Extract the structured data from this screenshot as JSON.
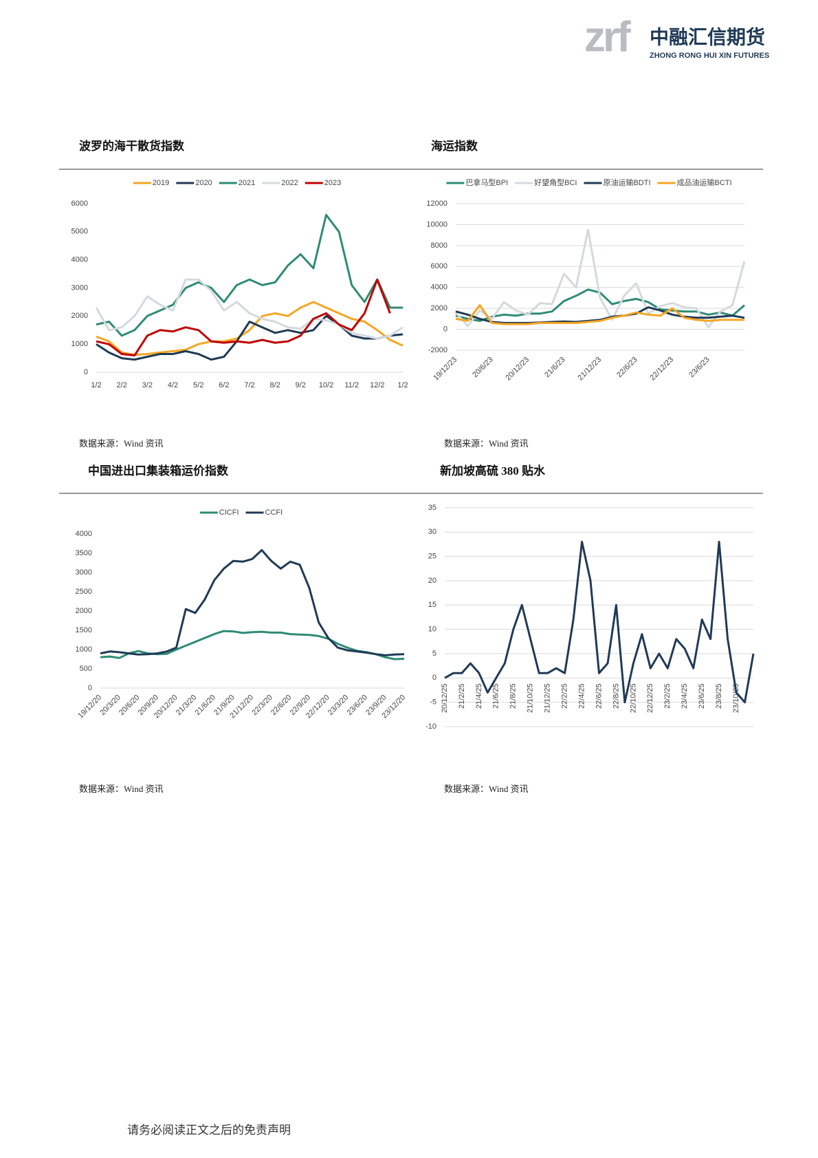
{
  "header": {
    "logo_mark": "zrf",
    "company": "中融汇信期货",
    "company_en": "ZHONG RONG HUI XIN FUTURES"
  },
  "chart_data": [
    {
      "type": "line",
      "title": "波罗的海干散货指数",
      "source": "数据来源：Wind 资讯",
      "legend": "top",
      "grid": false,
      "categories": [
        "1/2",
        null,
        "2/2",
        null,
        "3/2",
        null,
        "4/2",
        null,
        "5/2",
        null,
        "6/2",
        null,
        "7/2",
        null,
        "8/2",
        null,
        "9/2",
        null,
        "10/2",
        null,
        "11/2",
        null,
        "12/2",
        null,
        "1/2"
      ],
      "series": [
        {
          "name": "2019",
          "color": "#f5a623",
          "values": [
            1270,
            1100,
            700,
            620,
            650,
            700,
            750,
            800,
            1000,
            1100,
            1100,
            1200,
            1500,
            2000,
            2100,
            2000,
            2300,
            2500,
            2300,
            2100,
            1900,
            1800,
            1500,
            1150,
            950
          ]
        },
        {
          "name": "2020",
          "color": "#1f3a56",
          "values": [
            1000,
            700,
            500,
            450,
            550,
            650,
            650,
            750,
            650,
            450,
            550,
            1100,
            1800,
            1600,
            1400,
            1500,
            1400,
            1500,
            2000,
            1700,
            1300,
            1200,
            1200,
            1300,
            1350
          ]
        },
        {
          "name": "2021",
          "color": "#2e8b74",
          "values": [
            1700,
            1800,
            1300,
            1500,
            2000,
            2200,
            2400,
            3000,
            3200,
            3000,
            2500,
            3100,
            3300,
            3100,
            3200,
            3800,
            4200,
            3700,
            5600,
            5000,
            3100,
            2500,
            3300,
            2300,
            2300
          ]
        },
        {
          "name": "2022",
          "color": "#d4d9de",
          "values": [
            2300,
            1500,
            1600,
            2000,
            2700,
            2400,
            2200,
            3300,
            3300,
            2900,
            2200,
            2500,
            2100,
            1900,
            1800,
            1600,
            1550,
            1900,
            1850,
            1700,
            1400,
            1300,
            1200,
            1300,
            1600
          ]
        },
        {
          "name": "2023",
          "color": "#c00000",
          "values": [
            1100,
            1000,
            650,
            600,
            1300,
            1500,
            1450,
            1600,
            1500,
            1100,
            1050,
            1100,
            1050,
            1150,
            1050,
            1100,
            1300,
            1900,
            2100,
            1700,
            1500,
            2100,
            3300,
            2100,
            null
          ]
        }
      ],
      "ylim": [
        0,
        6000
      ],
      "yticks": [
        0,
        1000,
        2000,
        3000,
        4000,
        5000,
        6000
      ]
    },
    {
      "type": "line",
      "title": "海运指数",
      "source": "数据来源：Wind 资讯",
      "legend": "top",
      "grid": true,
      "categories": [
        "19/12/23",
        null,
        null,
        "20/6/23",
        null,
        null,
        "20/12/23",
        null,
        null,
        "21/6/23",
        null,
        null,
        "21/12/23",
        null,
        null,
        "22/6/23",
        null,
        null,
        "22/12/23",
        null,
        null,
        "23/6/23",
        null,
        null,
        null
      ],
      "series": [
        {
          "name": "巴拿马型BPI",
          "color": "#2e8b74",
          "values": [
            1300,
            1000,
            800,
            1200,
            1400,
            1300,
            1500,
            1500,
            1700,
            2700,
            3200,
            3800,
            3500,
            2400,
            2700,
            2900,
            2600,
            1900,
            1800,
            1700,
            1700,
            1400,
            1600,
            1300,
            2300
          ]
        },
        {
          "name": "好望角型BCI",
          "color": "#d4d9de",
          "values": [
            1600,
            300,
            1800,
            1000,
            2600,
            1800,
            1400,
            2500,
            2400,
            5300,
            4000,
            9500,
            3000,
            900,
            3200,
            4400,
            1500,
            2200,
            2500,
            2100,
            2000,
            200,
            1700,
            2300,
            6500
          ]
        },
        {
          "name": "原油运输BDTI",
          "color": "#1f3a56",
          "values": [
            1700,
            1400,
            1000,
            700,
            600,
            600,
            600,
            650,
            700,
            750,
            700,
            800,
            900,
            1200,
            1300,
            1500,
            2100,
            1800,
            1400,
            1200,
            1100,
            1100,
            1200,
            1300,
            1100
          ]
        },
        {
          "name": "成品油运输BCTI",
          "color": "#f5a623",
          "values": [
            1000,
            800,
            2300,
            600,
            500,
            500,
            500,
            600,
            600,
            600,
            600,
            700,
            800,
            1100,
            1300,
            1600,
            1400,
            1300,
            2000,
            1100,
            900,
            800,
            900,
            900,
            900
          ]
        }
      ],
      "ylim": [
        -2000,
        12000
      ],
      "yticks": [
        -2000,
        0,
        2000,
        4000,
        6000,
        8000,
        10000,
        12000
      ]
    },
    {
      "type": "line",
      "title": "中国进出口集装箱运价指数",
      "source": "数据来源：Wind 资讯",
      "legend": "top",
      "grid": false,
      "categories": [
        "19/12/20",
        null,
        "20/3/20",
        null,
        "20/6/20",
        null,
        "20/9/20",
        null,
        "20/12/20",
        null,
        "21/3/20",
        null,
        "21/6/20",
        null,
        "21/9/20",
        null,
        "21/12/20",
        null,
        "22/3/20",
        null,
        "22/6/20",
        null,
        "22/9/20",
        null,
        "22/12/20",
        null,
        "23/3/20",
        null,
        "23/6/20",
        null,
        "23/9/20",
        null,
        "23/12/20"
      ],
      "series": [
        {
          "name": "CICFI",
          "color": "#2e8b74",
          "values": [
            800,
            820,
            780,
            900,
            960,
            900,
            880,
            890,
            1000,
            1100,
            1200,
            1300,
            1400,
            1480,
            1470,
            1430,
            1450,
            1460,
            1440,
            1440,
            1400,
            1390,
            1380,
            1350,
            1280,
            1150,
            1050,
            970,
            930,
            880,
            800,
            750,
            760
          ]
        },
        {
          "name": "CCFI",
          "color": "#1f3a56",
          "values": [
            900,
            950,
            930,
            900,
            870,
            880,
            900,
            950,
            1050,
            2050,
            1950,
            2300,
            2800,
            3100,
            3300,
            3280,
            3350,
            3580,
            3300,
            3100,
            3280,
            3200,
            2600,
            1700,
            1300,
            1050,
            980,
            950,
            920,
            880,
            850,
            870,
            880
          ]
        }
      ],
      "ylim": [
        0,
        4000
      ],
      "yticks": [
        0,
        500,
        1000,
        1500,
        2000,
        2500,
        3000,
        3500,
        4000
      ]
    },
    {
      "type": "line",
      "title": "新加坡高硫 380 贴水",
      "source": "数据来源：Wind 资讯",
      "grid": true,
      "categories": [
        "20/12/25",
        null,
        "21/2/25",
        null,
        "21/4/25",
        null,
        "21/6/25",
        null,
        "21/8/25",
        null,
        "21/10/25",
        null,
        "21/12/25",
        null,
        "22/2/25",
        null,
        "22/4/25",
        null,
        "22/6/25",
        null,
        "22/8/25",
        null,
        "22/10/25",
        null,
        "22/12/25",
        null,
        "23/2/25",
        null,
        "23/4/25",
        null,
        "23/6/25",
        null,
        "23/8/25",
        null,
        "23/10/25",
        null,
        null
      ],
      "series": [
        {
          "color": "#1f3a56",
          "values": [
            0,
            1,
            1,
            3,
            1,
            -3,
            0,
            3,
            10,
            15,
            8,
            1,
            1,
            2,
            1,
            12,
            28,
            20,
            1,
            3,
            15,
            -5,
            3,
            9,
            2,
            5,
            2,
            8,
            6,
            2,
            12,
            8,
            28,
            8,
            -3,
            -5,
            5
          ]
        }
      ],
      "ylim": [
        -10,
        35
      ],
      "yticks": [
        -10,
        -5,
        0,
        5,
        10,
        15,
        20,
        25,
        30,
        35
      ]
    }
  ],
  "footer": "请务必阅读正文之后的免责声明"
}
